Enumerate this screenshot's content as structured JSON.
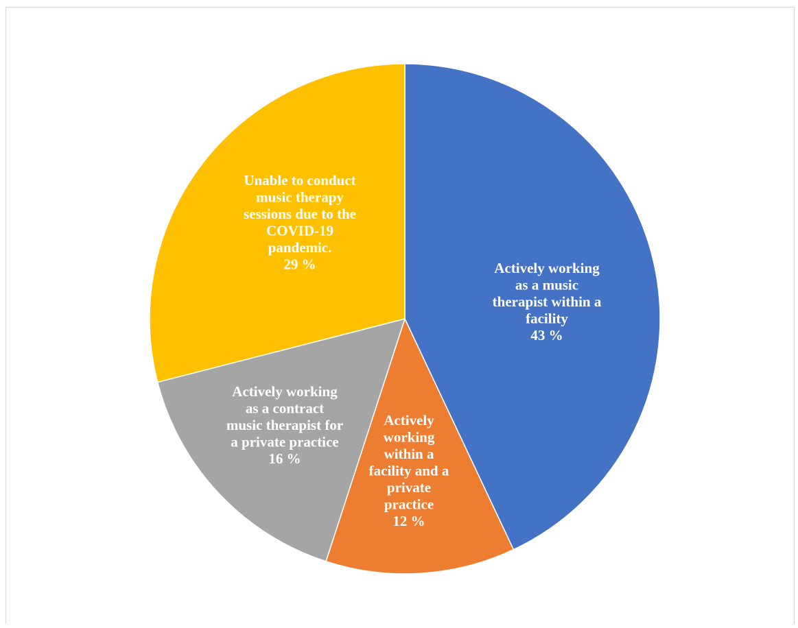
{
  "chart_data": {
    "type": "pie",
    "title": "",
    "start": "12 o'clock, clockwise",
    "slices": [
      {
        "label": "Actively working as a music therapist within a facility",
        "value": 43,
        "value_label": "43 %",
        "color": "#4472C4",
        "label_lines": [
          "Actively working",
          "as a music",
          "therapist within a",
          "facility",
          "43 %"
        ]
      },
      {
        "label": "Actively working within a facility and a private practice",
        "value": 12,
        "value_label": "12 %",
        "color": "#ED7D31",
        "label_lines": [
          "Actively",
          "working",
          "within a",
          "facility and a",
          "private",
          "practice",
          "12 %"
        ]
      },
      {
        "label": "Actively working as a contract music therapist for a private practice",
        "value": 16,
        "value_label": "16 %",
        "color": "#A5A5A5",
        "label_lines": [
          "Actively working",
          "as a contract",
          "music therapist for",
          "a private practice",
          "16 %"
        ]
      },
      {
        "label": "Unable to conduct music therapy sessions due to the COVID-19 pandemic.",
        "value": 29,
        "value_label": "29 %",
        "color": "#FFC000",
        "label_lines": [
          "Unable to conduct",
          "music therapy",
          "sessions due to the",
          "COVID-19",
          "pandemic.",
          "29 %"
        ]
      }
    ]
  }
}
